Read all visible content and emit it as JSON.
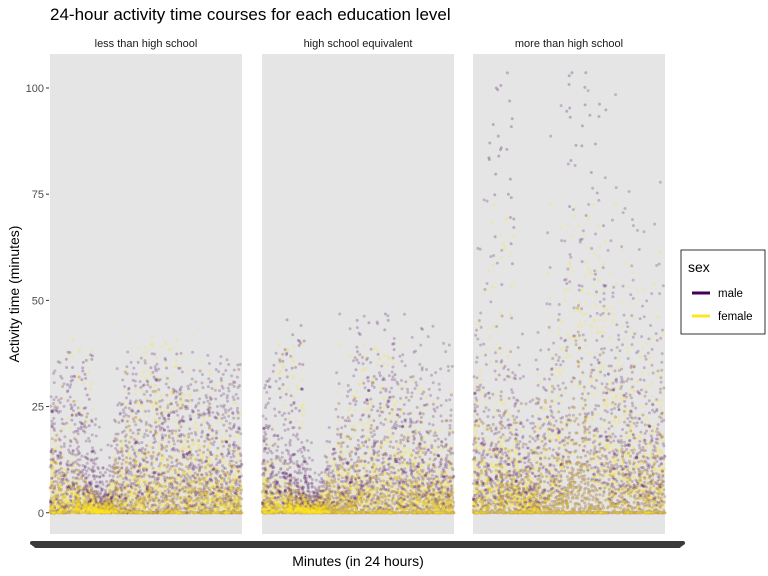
{
  "chart_data": {
    "type": "scatter",
    "title": "24-hour activity time courses for each education level",
    "xlabel": "Minutes (in 24 hours)",
    "ylabel": "Activity time (minutes)",
    "x_range": [
      1,
      1440
    ],
    "ylim": [
      -5,
      108
    ],
    "yticks": [
      0,
      25,
      50,
      75,
      100
    ],
    "grid": false,
    "legend_position": "right",
    "legend": {
      "title": "sex",
      "entries": [
        {
          "label": "male",
          "color": "#440154"
        },
        {
          "label": "female",
          "color": "#FDE725"
        }
      ]
    },
    "panel_background": "#e5e5e5",
    "facets": [
      {
        "label": "less than high school",
        "series": [
          {
            "name": "male",
            "color": "#440154",
            "profile": [
              [
                1,
                12
              ],
              [
                120,
                11
              ],
              [
                240,
                8
              ],
              [
                360,
                5
              ],
              [
                420,
                2
              ],
              [
                480,
                5
              ],
              [
                560,
                12
              ],
              [
                660,
                14
              ],
              [
                780,
                13
              ],
              [
                900,
                13
              ],
              [
                1020,
                13
              ],
              [
                1140,
                12
              ],
              [
                1260,
                12
              ],
              [
                1440,
                12
              ]
            ],
            "max": 38
          },
          {
            "name": "female",
            "color": "#FDE725",
            "profile": [
              [
                1,
                6
              ],
              [
                120,
                5
              ],
              [
                240,
                3
              ],
              [
                360,
                1
              ],
              [
                420,
                1
              ],
              [
                480,
                3
              ],
              [
                560,
                8
              ],
              [
                660,
                10
              ],
              [
                780,
                10
              ],
              [
                900,
                9
              ],
              [
                1020,
                9
              ],
              [
                1140,
                8
              ],
              [
                1260,
                7
              ],
              [
                1440,
                6
              ]
            ],
            "max": 42
          }
        ]
      },
      {
        "label": "high school equivalent",
        "series": [
          {
            "name": "male",
            "color": "#440154",
            "profile": [
              [
                1,
                10
              ],
              [
                120,
                9
              ],
              [
                240,
                7
              ],
              [
                360,
                4
              ],
              [
                420,
                2
              ],
              [
                480,
                3
              ],
              [
                560,
                7
              ],
              [
                660,
                10
              ],
              [
                780,
                12
              ],
              [
                900,
                12
              ],
              [
                1020,
                12
              ],
              [
                1140,
                11
              ],
              [
                1260,
                10
              ],
              [
                1440,
                9
              ]
            ],
            "max": 47
          },
          {
            "name": "female",
            "color": "#FDE725",
            "profile": [
              [
                1,
                4
              ],
              [
                120,
                3
              ],
              [
                240,
                2
              ],
              [
                360,
                1
              ],
              [
                420,
                1
              ],
              [
                480,
                2
              ],
              [
                560,
                6
              ],
              [
                660,
                8
              ],
              [
                780,
                8
              ],
              [
                900,
                8
              ],
              [
                1020,
                8
              ],
              [
                1140,
                7
              ],
              [
                1260,
                6
              ],
              [
                1440,
                5
              ]
            ],
            "max": 40
          }
        ]
      },
      {
        "label": "more than high school",
        "series": [
          {
            "name": "male",
            "color": "#440154",
            "profile": [
              [
                1,
                14
              ],
              [
                120,
                14
              ],
              [
                240,
                12
              ],
              [
                360,
                10
              ],
              [
                420,
                6
              ],
              [
                480,
                8
              ],
              [
                560,
                14
              ],
              [
                660,
                16
              ],
              [
                780,
                16
              ],
              [
                900,
                17
              ],
              [
                1020,
                17
              ],
              [
                1140,
                16
              ],
              [
                1260,
                15
              ],
              [
                1440,
                14
              ]
            ],
            "max": 104
          },
          {
            "name": "female",
            "color": "#FDE725",
            "profile": [
              [
                1,
                10
              ],
              [
                120,
                10
              ],
              [
                240,
                9
              ],
              [
                360,
                6
              ],
              [
                420,
                4
              ],
              [
                480,
                6
              ],
              [
                560,
                12
              ],
              [
                660,
                15
              ],
              [
                780,
                16
              ],
              [
                900,
                16
              ],
              [
                1020,
                15
              ],
              [
                1140,
                14
              ],
              [
                1260,
                12
              ],
              [
                1440,
                11
              ]
            ],
            "max": 73
          }
        ]
      }
    ]
  }
}
